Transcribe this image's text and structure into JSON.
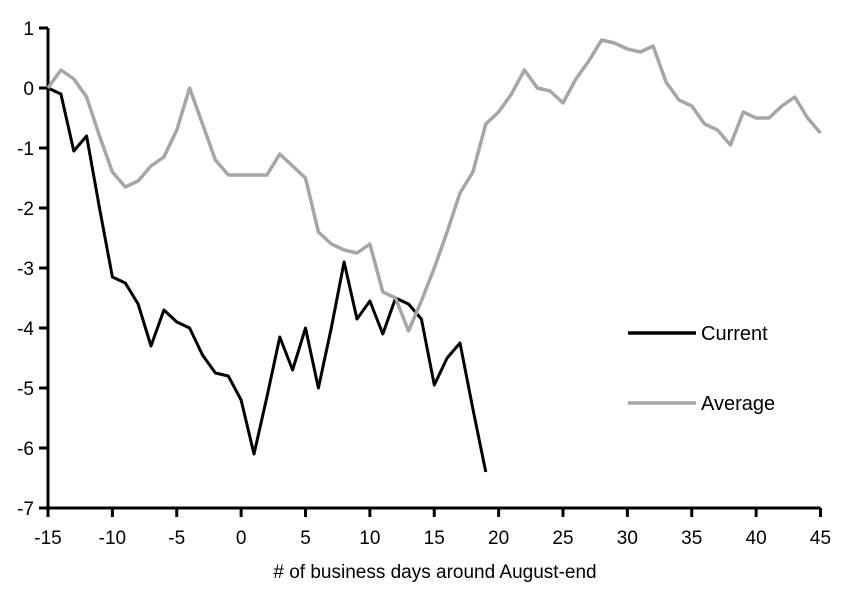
{
  "chart_data": {
    "type": "line",
    "title": "",
    "xlabel": "# of business days around August-end",
    "ylabel": "",
    "xlim": [
      -15,
      45
    ],
    "ylim": [
      -7,
      1
    ],
    "x_ticks": [
      -15,
      -10,
      -5,
      0,
      5,
      10,
      15,
      20,
      25,
      30,
      35,
      40,
      45
    ],
    "y_ticks": [
      1,
      0,
      -1,
      -2,
      -3,
      -4,
      -5,
      -6,
      -7
    ],
    "grid": false,
    "legend_position": "middle-right",
    "axis_color": "#000000",
    "background_color": "#ffffff",
    "series": [
      {
        "name": "Current",
        "color": "#000000",
        "line_width": 3,
        "points": [
          [
            -15,
            0
          ],
          [
            -14,
            -0.1
          ],
          [
            -13,
            -1.05
          ],
          [
            -12,
            -0.8
          ],
          [
            -11,
            -2.0
          ],
          [
            -10,
            -3.15
          ],
          [
            -9,
            -3.25
          ],
          [
            -8,
            -3.6
          ],
          [
            -7,
            -4.3
          ],
          [
            -6,
            -3.7
          ],
          [
            -5,
            -3.9
          ],
          [
            -4,
            -4.0
          ],
          [
            -3,
            -4.45
          ],
          [
            -2,
            -4.75
          ],
          [
            -1,
            -4.8
          ],
          [
            0,
            -5.2
          ],
          [
            1,
            -6.1
          ],
          [
            2,
            -5.15
          ],
          [
            3,
            -4.15
          ],
          [
            4,
            -4.7
          ],
          [
            5,
            -4.0
          ],
          [
            6,
            -5.0
          ],
          [
            7,
            -4.0
          ],
          [
            8,
            -2.9
          ],
          [
            9,
            -3.85
          ],
          [
            10,
            -3.55
          ],
          [
            11,
            -4.1
          ],
          [
            12,
            -3.5
          ],
          [
            13,
            -3.6
          ],
          [
            14,
            -3.85
          ],
          [
            15,
            -4.95
          ],
          [
            16,
            -4.5
          ],
          [
            17,
            -4.25
          ],
          [
            18,
            -5.35
          ],
          [
            19,
            -6.4
          ]
        ]
      },
      {
        "name": "Average",
        "color": "#a6a6a6",
        "line_width": 3.5,
        "points": [
          [
            -15,
            0
          ],
          [
            -14,
            0.3
          ],
          [
            -13,
            0.15
          ],
          [
            -12,
            -0.15
          ],
          [
            -11,
            -0.8
          ],
          [
            -10,
            -1.4
          ],
          [
            -9,
            -1.65
          ],
          [
            -8,
            -1.55
          ],
          [
            -7,
            -1.3
          ],
          [
            -6,
            -1.15
          ],
          [
            -5,
            -0.7
          ],
          [
            -4,
            0.0
          ],
          [
            -3,
            -0.6
          ],
          [
            -2,
            -1.2
          ],
          [
            -1,
            -1.45
          ],
          [
            0,
            -1.45
          ],
          [
            1,
            -1.45
          ],
          [
            2,
            -1.45
          ],
          [
            3,
            -1.1
          ],
          [
            4,
            -1.3
          ],
          [
            5,
            -1.5
          ],
          [
            6,
            -2.4
          ],
          [
            7,
            -2.6
          ],
          [
            8,
            -2.7
          ],
          [
            9,
            -2.75
          ],
          [
            10,
            -2.6
          ],
          [
            11,
            -3.4
          ],
          [
            12,
            -3.5
          ],
          [
            13,
            -4.05
          ],
          [
            14,
            -3.55
          ],
          [
            15,
            -3.0
          ],
          [
            16,
            -2.4
          ],
          [
            17,
            -1.75
          ],
          [
            18,
            -1.4
          ],
          [
            19,
            -0.6
          ],
          [
            20,
            -0.4
          ],
          [
            21,
            -0.1
          ],
          [
            22,
            0.3
          ],
          [
            23,
            0.0
          ],
          [
            24,
            -0.05
          ],
          [
            25,
            -0.25
          ],
          [
            26,
            0.15
          ],
          [
            27,
            0.45
          ],
          [
            28,
            0.8
          ],
          [
            29,
            0.75
          ],
          [
            30,
            0.65
          ],
          [
            31,
            0.6
          ],
          [
            32,
            0.7
          ],
          [
            33,
            0.1
          ],
          [
            34,
            -0.2
          ],
          [
            35,
            -0.3
          ],
          [
            36,
            -0.6
          ],
          [
            37,
            -0.7
          ],
          [
            38,
            -0.95
          ],
          [
            39,
            -0.4
          ],
          [
            40,
            -0.5
          ],
          [
            41,
            -0.5
          ],
          [
            42,
            -0.3
          ],
          [
            43,
            -0.15
          ],
          [
            44,
            -0.5
          ],
          [
            45,
            -0.75
          ]
        ]
      }
    ]
  },
  "legend": {
    "items": [
      {
        "label": "Current"
      },
      {
        "label": "Average"
      }
    ]
  }
}
